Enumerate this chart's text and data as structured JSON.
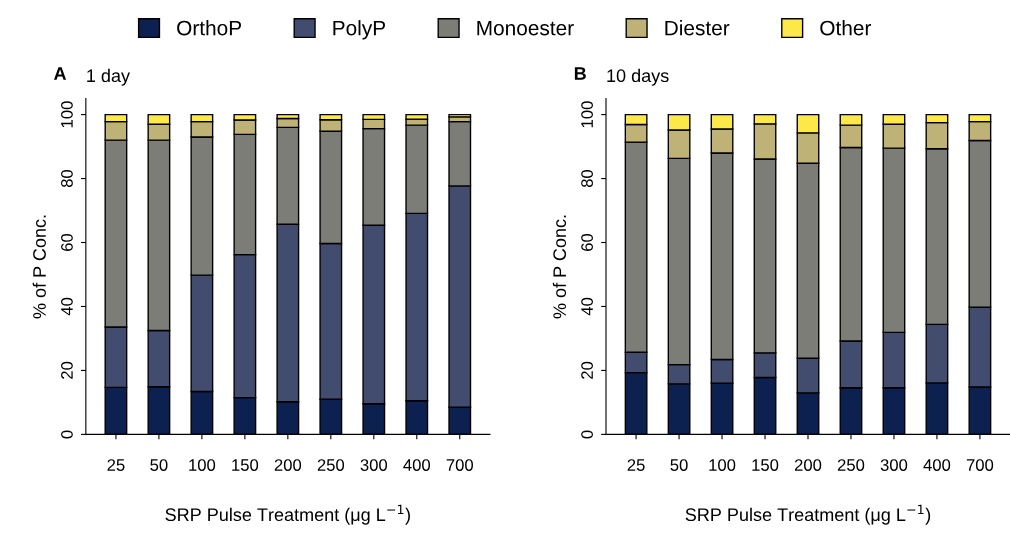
{
  "chart_data": [
    {
      "type": "bar",
      "stacked": true,
      "title": "1 day",
      "annotations": [
        "A"
      ],
      "xlabel": "SRP Pulse Treatment (μg L$^{−1}$)",
      "ylabel": "% of P Conc.",
      "categories": [
        "25",
        "50",
        "100",
        "150",
        "200",
        "250",
        "300",
        "400",
        "700"
      ],
      "ylim": [
        0,
        105
      ],
      "yticks": [
        0,
        20,
        40,
        60,
        80,
        100
      ],
      "legend": "top",
      "grid": false,
      "series": [
        {
          "name": "OrthoP",
          "color": "#0d2150",
          "values": [
            14.7,
            14.9,
            13.4,
            11.5,
            10.2,
            11.0,
            9.6,
            10.5,
            8.5
          ]
        },
        {
          "name": "PolyP",
          "color": "#414c6e",
          "values": [
            18.9,
            17.6,
            36.4,
            44.7,
            55.5,
            48.7,
            55.8,
            58.6,
            69.2
          ]
        },
        {
          "name": "Monoester",
          "color": "#7d7d78",
          "values": [
            58.4,
            59.5,
            43.2,
            37.6,
            30.3,
            35.1,
            30.2,
            27.6,
            20.1
          ]
        },
        {
          "name": "Diester",
          "color": "#bfb277",
          "values": [
            5.8,
            5.0,
            4.8,
            4.5,
            2.8,
            3.6,
            2.9,
            1.9,
            1.5
          ]
        },
        {
          "name": "Other",
          "color": "#fde84a",
          "values": [
            2.2,
            3.0,
            2.2,
            1.7,
            1.2,
            1.6,
            1.5,
            1.4,
            0.7
          ]
        }
      ]
    },
    {
      "type": "bar",
      "stacked": true,
      "title": "10 days",
      "annotations": [
        "B"
      ],
      "xlabel": "SRP Pulse Treatment (μg L$^{−1}$)",
      "ylabel": "% of P Conc.",
      "categories": [
        "25",
        "50",
        "100",
        "150",
        "200",
        "250",
        "300",
        "400",
        "700"
      ],
      "ylim": [
        0,
        105
      ],
      "yticks": [
        0,
        20,
        40,
        60,
        80,
        100
      ],
      "grid": false,
      "series": [
        {
          "color": "#0d2150",
          "values": [
            19.3,
            15.8,
            16.0,
            17.8,
            13.0,
            14.6,
            14.6,
            16.1,
            14.8
          ]
        },
        {
          "color": "#414c6e",
          "values": [
            6.4,
            6.0,
            7.4,
            7.7,
            10.8,
            14.6,
            17.3,
            18.3,
            25.0
          ]
        },
        {
          "color": "#7d7d78",
          "values": [
            65.7,
            64.5,
            64.6,
            60.6,
            61.0,
            60.5,
            57.6,
            54.9,
            52.1
          ]
        },
        {
          "color": "#bfb277",
          "values": [
            5.5,
            8.9,
            7.5,
            11.0,
            9.5,
            7.0,
            7.5,
            8.2,
            5.9
          ]
        },
        {
          "color": "#fde84a",
          "values": [
            3.1,
            4.8,
            4.5,
            2.9,
            5.7,
            3.3,
            3.0,
            2.5,
            2.2
          ]
        }
      ]
    }
  ]
}
